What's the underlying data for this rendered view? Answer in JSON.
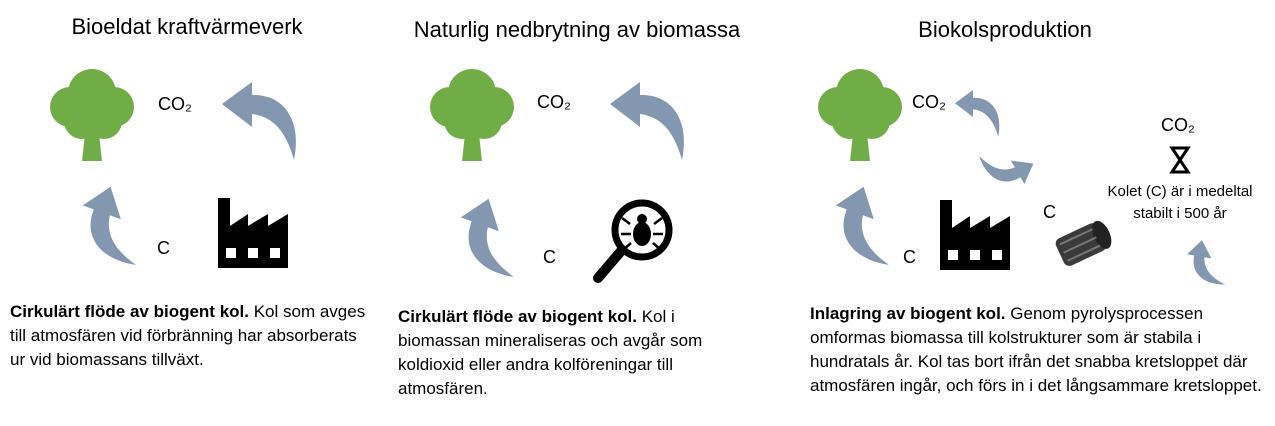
{
  "panels": [
    {
      "title": "Bioeldat kraftvärmeverk",
      "co2": "CO₂",
      "c": "C",
      "description": {
        "bold": "Cirkulärt flöde av biogent kol.",
        "text": "Kol som avges till atmosfären vid förbränning har absorberats ur vid biomassans tillväxt."
      }
    },
    {
      "title": "Naturlig nedbrytning av biomassa",
      "co2": "CO₂",
      "c": "C",
      "description": {
        "bold": "Cirkulärt flöde av biogent kol.",
        "text": "Kol i biomassan mineraliseras och avgår som koldioxid eller andra kolföreningar till atmosfären."
      }
    },
    {
      "title": "Biokolsproduktion",
      "co2": "CO₂",
      "c": "C",
      "c2": "C",
      "co2_storage": "CO₂",
      "note": [
        "Kolet (C) är i medeltal",
        "stabilt i 500 år"
      ],
      "description": {
        "bold": "Inlagring av biogent kol.",
        "text": "Genom pyrolysprocessen omformas biomassa till kolstrukturer som är stabila i hundratals år. Kol tas bort ifrån det snabba kretsloppet där atmosfären ingår, och förs in i det långsammare kretsloppet."
      }
    }
  ]
}
